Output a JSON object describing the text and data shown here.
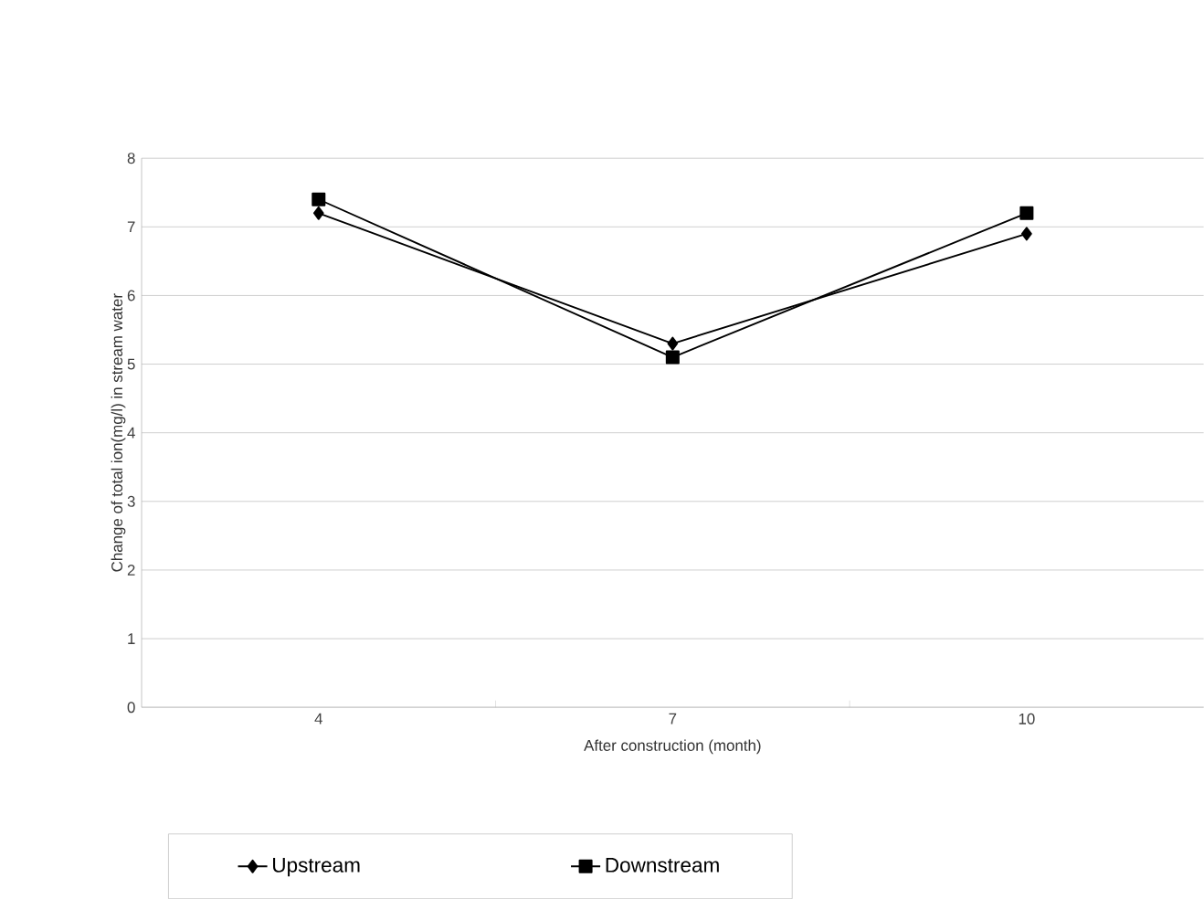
{
  "chart_data": {
    "type": "line",
    "xlabel": "After construction (month)",
    "ylabel": "Change of total ion(mg/l) in stream water",
    "categories": [
      "4",
      "7",
      "10"
    ],
    "series": [
      {
        "name": "Upstream",
        "color": "#000000",
        "marker": "diamond",
        "values": [
          7.2,
          5.3,
          6.9
        ]
      },
      {
        "name": "Downstream",
        "color": "#000000",
        "marker": "square",
        "values": [
          7.4,
          5.1,
          7.2
        ]
      }
    ],
    "ylim": [
      0,
      8
    ],
    "yticks": [
      0,
      1,
      2,
      3,
      4,
      5,
      6,
      7,
      8
    ],
    "grid": "y",
    "legend": "bottom"
  }
}
